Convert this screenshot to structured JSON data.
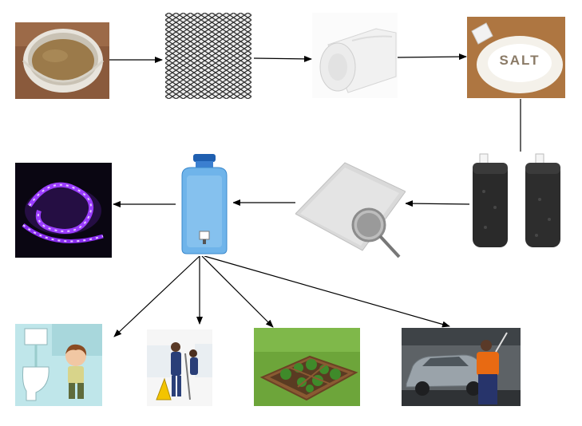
{
  "diagram": {
    "salt_label": "SALT",
    "colors": {
      "arrow": "#000000",
      "muddy_water": "#9b7a4a",
      "uv_glow": "#9b3dff",
      "bottle_blue": "#6fb4ea",
      "charcoal": "#2a2a2a"
    },
    "nodes": [
      {
        "id": "muddy-water",
        "icon": "bucket-of-muddy-water"
      },
      {
        "id": "wire-mesh",
        "icon": "wire-mesh"
      },
      {
        "id": "cotton-roll",
        "icon": "cotton-roll"
      },
      {
        "id": "salt",
        "icon": "salt-pile"
      },
      {
        "id": "charcoal-filters",
        "icon": "charcoal-filter-cartridges"
      },
      {
        "id": "fine-mesh-screen",
        "icon": "fine-mesh-with-magnifier"
      },
      {
        "id": "water-container",
        "icon": "water-dispenser-bottle"
      },
      {
        "id": "uv-led-strip",
        "icon": "uv-led-strip"
      },
      {
        "id": "toilet-flushing",
        "icon": "toilet-cartoon"
      },
      {
        "id": "cleaning",
        "icon": "cleaning-staff"
      },
      {
        "id": "garden-irrigation",
        "icon": "vegetable-garden"
      },
      {
        "id": "car-washing",
        "icon": "car-wash"
      }
    ],
    "edges": [
      {
        "from": "muddy-water",
        "to": "wire-mesh"
      },
      {
        "from": "wire-mesh",
        "to": "cotton-roll"
      },
      {
        "from": "cotton-roll",
        "to": "salt"
      },
      {
        "from": "salt",
        "to": "charcoal-filters"
      },
      {
        "from": "charcoal-filters",
        "to": "fine-mesh-screen"
      },
      {
        "from": "fine-mesh-screen",
        "to": "water-container"
      },
      {
        "from": "water-container",
        "to": "uv-led-strip"
      },
      {
        "from": "water-container",
        "to": "toilet-flushing"
      },
      {
        "from": "water-container",
        "to": "cleaning"
      },
      {
        "from": "water-container",
        "to": "garden-irrigation"
      },
      {
        "from": "water-container",
        "to": "car-washing"
      }
    ]
  }
}
